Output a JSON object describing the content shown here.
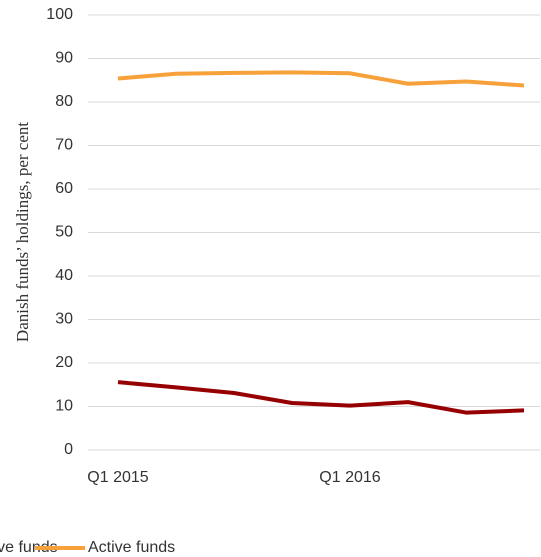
{
  "chart_data": {
    "type": "line",
    "y_label": "Danish funds’ holdings, per cent",
    "categories": [
      "Q1 2015",
      null,
      null,
      null,
      "Q1 2016",
      null,
      null,
      null
    ],
    "series": [
      {
        "name": "Passive funds",
        "color": "#960000",
        "values": [
          15.6,
          14.4,
          13.1,
          10.8,
          10.2,
          11.0,
          8.6,
          9.1
        ]
      },
      {
        "name": "Active funds",
        "color": "#f7a13a",
        "values": [
          85.4,
          86.5,
          86.7,
          86.8,
          86.6,
          84.2,
          84.7,
          83.8
        ]
      }
    ],
    "ylim": [
      0,
      100
    ],
    "yticks": [
      0,
      10,
      20,
      30,
      40,
      50,
      60,
      70,
      80,
      90,
      100
    ],
    "grid": true
  }
}
